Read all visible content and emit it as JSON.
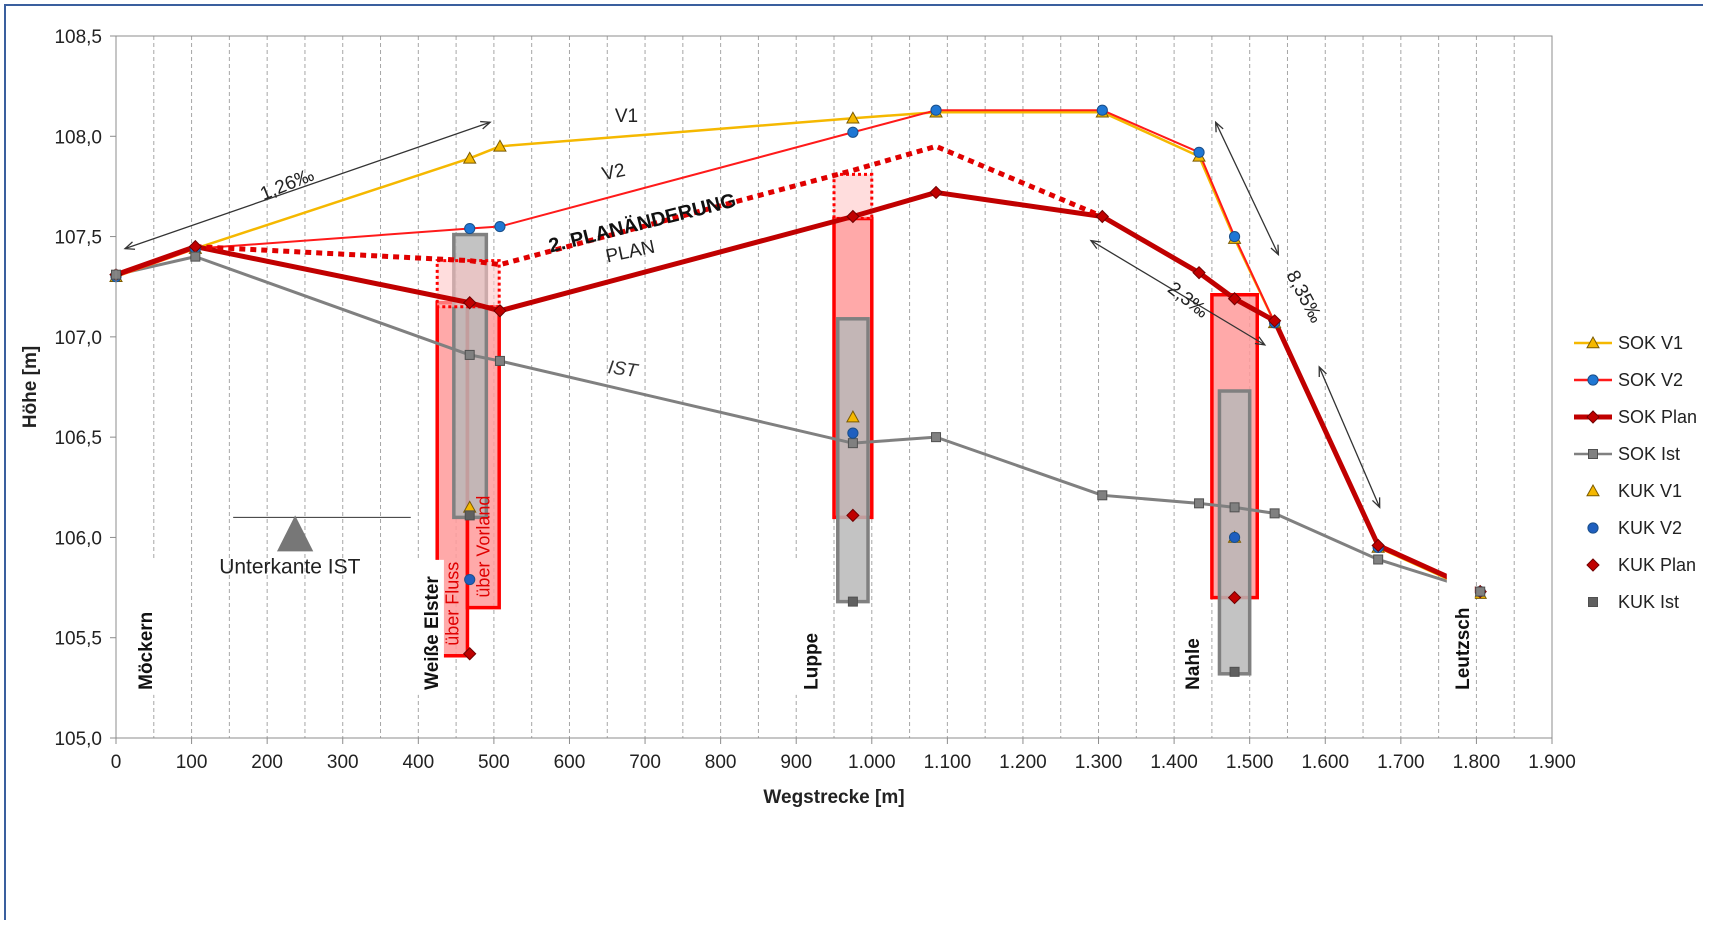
{
  "chart_data": {
    "type": "line",
    "title": "",
    "xlabel": "Wegstrecke [m]",
    "ylabel": "Höhe [m]",
    "xlim": [
      0,
      1900
    ],
    "ylim": [
      105.0,
      108.5
    ],
    "x_ticks": [
      0,
      100,
      200,
      300,
      400,
      500,
      600,
      700,
      800,
      900,
      1000,
      1100,
      1200,
      1300,
      1400,
      1500,
      1600,
      1700,
      1800,
      1900
    ],
    "x_tick_labels": [
      "0",
      "100",
      "200",
      "300",
      "400",
      "500",
      "600",
      "700",
      "800",
      "900",
      "1.000",
      "1.100",
      "1.200",
      "1.300",
      "1.400",
      "1.500",
      "1.600",
      "1.700",
      "1.800",
      "1.900"
    ],
    "y_ticks": [
      105.0,
      105.5,
      106.0,
      106.5,
      107.0,
      107.5,
      108.0,
      108.5
    ],
    "y_tick_labels": [
      "105,0",
      "105,5",
      "106,0",
      "106,5",
      "107,0",
      "107,5",
      "108,0",
      "108,5"
    ],
    "vertical_gridlines": "dashed, every 50 m",
    "legend_position": "right",
    "series": [
      {
        "name": "SOK V1",
        "color": "#f5b800",
        "marker": "triangle",
        "line": true,
        "x": [
          0,
          105,
          468,
          508,
          975,
          1085,
          1305,
          1433,
          1480,
          1533,
          1670,
          1805
        ],
        "y": [
          107.3,
          107.44,
          107.89,
          107.95,
          108.09,
          108.12,
          108.12,
          107.9,
          107.49,
          107.07,
          105.95,
          105.72
        ]
      },
      {
        "name": "SOK V2",
        "color": "#ff1a1a",
        "marker": "circle",
        "line": true,
        "x": [
          0,
          105,
          468,
          508,
          975,
          1085,
          1305,
          1433,
          1480,
          1533,
          1670,
          1805
        ],
        "y": [
          107.3,
          107.44,
          107.54,
          107.55,
          108.02,
          108.13,
          108.13,
          107.92,
          107.5,
          107.07,
          105.95,
          105.73
        ]
      },
      {
        "name": "SOK Plan",
        "color": "#c00000",
        "marker": "diamond",
        "line": true,
        "x": [
          0,
          105,
          468,
          508,
          975,
          1085,
          1305,
          1433,
          1480,
          1533,
          1670,
          1805
        ],
        "y": [
          107.31,
          107.45,
          107.17,
          107.13,
          107.6,
          107.72,
          107.6,
          107.32,
          107.19,
          107.08,
          105.96,
          105.73
        ]
      },
      {
        "name": "SOK Ist",
        "color": "#808080",
        "marker": "square",
        "line": true,
        "x": [
          0,
          105,
          468,
          508,
          975,
          1085,
          1305,
          1433,
          1480,
          1533,
          1670,
          1805
        ],
        "y": [
          107.31,
          107.4,
          106.91,
          106.88,
          106.47,
          106.5,
          106.21,
          106.17,
          106.15,
          106.12,
          105.89,
          105.73
        ]
      },
      {
        "name": "KUK V1",
        "color": "#f5b800",
        "marker": "triangle",
        "line": false,
        "x": [
          468,
          975,
          1480
        ],
        "y": [
          106.15,
          106.6,
          106.0
        ]
      },
      {
        "name": "KUK V2",
        "color": "#1f5fbf",
        "marker": "circle",
        "line": false,
        "x": [
          468,
          975,
          1480
        ],
        "y": [
          105.79,
          106.52,
          106.0
        ]
      },
      {
        "name": "KUK Plan",
        "color": "#c00000",
        "marker": "diamond",
        "line": false,
        "x": [
          468,
          975,
          1480
        ],
        "y": [
          105.42,
          106.11,
          105.7
        ]
      },
      {
        "name": "KUK Ist",
        "color": "#606060",
        "marker": "square",
        "line": false,
        "x": [
          468,
          975,
          1480
        ],
        "y": [
          106.11,
          105.68,
          105.33
        ]
      }
    ],
    "plan_change_line": {
      "label": "2. PLANÄNDERUNG",
      "color": "#e00000",
      "style": "dotted",
      "x": [
        105,
        468,
        508,
        975,
        1085,
        1305
      ],
      "y": [
        107.45,
        107.38,
        107.36,
        107.83,
        107.95,
        107.6
      ]
    },
    "bridge_bars": [
      {
        "x0": 425,
        "x1": 465,
        "y0": 105.41,
        "y1": 107.17,
        "color": "#ff9a9a",
        "edge": "#ff0000",
        "label": "über Fluss"
      },
      {
        "x0": 465,
        "x1": 507,
        "y0": 105.65,
        "y1": 107.15,
        "color": "#ff9a9a",
        "edge": "#ff0000",
        "label": "über Vorland"
      },
      {
        "x0": 447,
        "x1": 490,
        "y0": 106.1,
        "y1": 107.51,
        "color": "#b8b8b8",
        "edge": "#808080"
      },
      {
        "x0": 425,
        "x1": 507,
        "y0": 107.15,
        "y1": 107.38,
        "color": "#ffc7c7",
        "edge": "#ff0000",
        "dotted": true
      },
      {
        "x0": 950,
        "x1": 1000,
        "y0": 106.1,
        "y1": 107.59,
        "color": "#ff9a9a",
        "edge": "#ff0000"
      },
      {
        "x0": 955,
        "x1": 995,
        "y0": 105.68,
        "y1": 107.09,
        "color": "#b8b8b8",
        "edge": "#808080"
      },
      {
        "x0": 950,
        "x1": 1000,
        "y0": 107.59,
        "y1": 107.81,
        "color": "#ffc7c7",
        "edge": "#ff0000",
        "dotted": true
      },
      {
        "x0": 1450,
        "x1": 1510,
        "y0": 105.7,
        "y1": 107.21,
        "color": "#ff9a9a",
        "edge": "#ff0000"
      },
      {
        "x0": 1460,
        "x1": 1500,
        "y0": 105.32,
        "y1": 106.73,
        "color": "#b8b8b8",
        "edge": "#808080"
      }
    ],
    "stations": [
      {
        "label": "Möckern",
        "x": 40
      },
      {
        "label": "Weiße Elster",
        "x": 418
      },
      {
        "label": "Luppe",
        "x": 920
      },
      {
        "label": "Nahle",
        "x": 1425
      },
      {
        "label": "Leutzsch",
        "x": 1782
      }
    ],
    "annotations": {
      "v1": "V1",
      "v2": "V2",
      "plan": "PLAN",
      "ist": "IST",
      "grade_1": "1,26‰",
      "grade_2": "2,3‰",
      "grade_3": "8,35‰",
      "unterkante": "Unterkante IST"
    }
  }
}
